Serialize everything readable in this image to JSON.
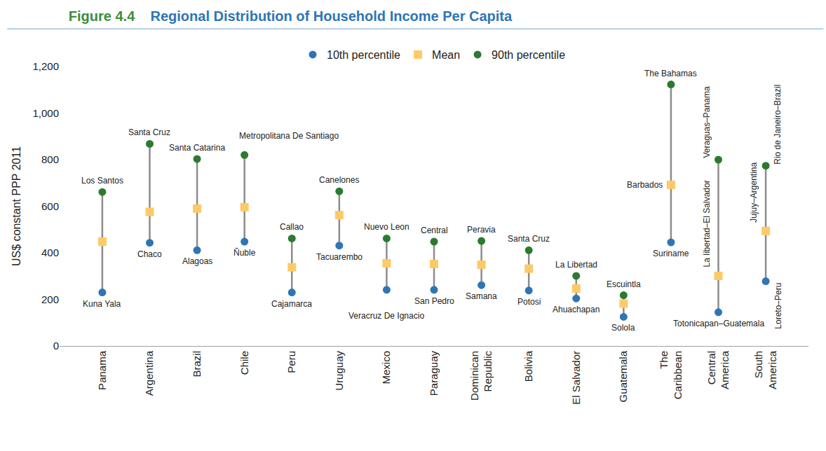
{
  "chart_data": {
    "type": "dot",
    "figure_label": "Figure 4.4",
    "title": "Regional Distribution of Household Income Per Capita",
    "y_label": "US$ constant PPP 2011",
    "categories": [
      "Panama",
      "Argentina",
      "Brazil",
      "Chile",
      "Peru",
      "Uruguay",
      "Mexico",
      "Paraguay",
      "Dominican Republic",
      "Bolivia",
      "El Salvador",
      "Guatemala",
      "The Caribbean",
      "Central America",
      "South America"
    ],
    "series": [
      {
        "name": "10th percentile",
        "color": "#2f75b5",
        "marker": "circle",
        "values": [
          230,
          443,
          411,
          448,
          230,
          431,
          241,
          241,
          261,
          238,
          204,
          125,
          445,
          145,
          278
        ],
        "point_labels": [
          "Kuna Yala",
          "Chaco",
          "Alagoas",
          "Ñuble",
          "Cajamarca",
          "Tacuarembo",
          "Veracruz De Ignacio",
          "San Pedro",
          "Samana",
          "Potosi",
          "Ahuachapan",
          "Solola",
          "Suriname",
          "Totonicapan–Guatemala",
          "Loreto–Peru"
        ]
      },
      {
        "name": "Mean",
        "color": "#fcca66",
        "marker": "square",
        "values": [
          448,
          576,
          590,
          596,
          338,
          562,
          355,
          352,
          349,
          332,
          247,
          182,
          692,
          301,
          494
        ],
        "point_labels": [
          null,
          null,
          null,
          null,
          null,
          null,
          null,
          null,
          null,
          null,
          null,
          null,
          "Barbados",
          "La libertad–El Salvador",
          "Jujuy–Argentina"
        ]
      },
      {
        "name": "90th percentile",
        "color": "#2c7a30",
        "marker": "circle",
        "values": [
          661,
          868,
          803,
          820,
          462,
          664,
          462,
          448,
          451,
          411,
          301,
          218,
          1123,
          800,
          774
        ],
        "point_labels": [
          "Los Santos",
          "Santa Cruz",
          "Santa Catarina",
          "Metropolitana De Santiago",
          "Callao",
          "Canelones",
          "Nuevo Leon",
          "Central",
          "Peravia",
          "Santa Cruz",
          "La Libertad",
          "Escuintla",
          "The Bahamas",
          "Veraguas–Panama",
          "Rio de Janeiro–Brazil"
        ]
      }
    ],
    "ylim": [
      0,
      1200
    ],
    "yticks": [
      0,
      200,
      400,
      600,
      800,
      {
        "value": 1000,
        "label": "1,000"
      },
      {
        "value": 1200,
        "label": "1,200"
      }
    ],
    "grid": false,
    "legend": "top"
  }
}
